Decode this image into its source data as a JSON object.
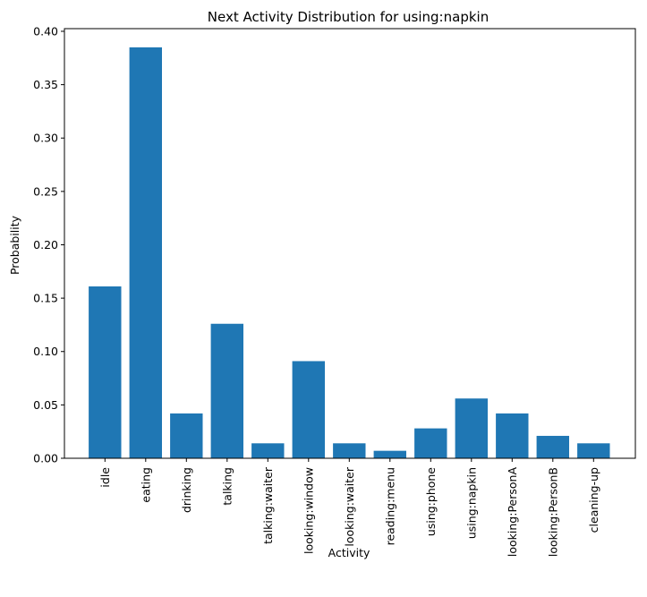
{
  "chart_data": {
    "type": "bar",
    "title": "Next Activity Distribution for using:napkin",
    "xlabel": "Activity",
    "ylabel": "Probability",
    "categories": [
      "idle",
      "eating",
      "drinking",
      "talking",
      "talking:waiter",
      "looking:window",
      "looking:waiter",
      "reading:menu",
      "using:phone",
      "using:napkin",
      "looking:PersonA",
      "looking:PersonB",
      "cleaning-up"
    ],
    "values": [
      0.161,
      0.385,
      0.042,
      0.126,
      0.014,
      0.091,
      0.014,
      0.007,
      0.028,
      0.056,
      0.042,
      0.021,
      0.014
    ],
    "ylim": [
      0,
      0.4025
    ],
    "yticks": [
      "0.00",
      "0.05",
      "0.10",
      "0.15",
      "0.20",
      "0.25",
      "0.30",
      "0.35",
      "0.40"
    ],
    "grid": false,
    "bar_color": "#1f77b4"
  }
}
